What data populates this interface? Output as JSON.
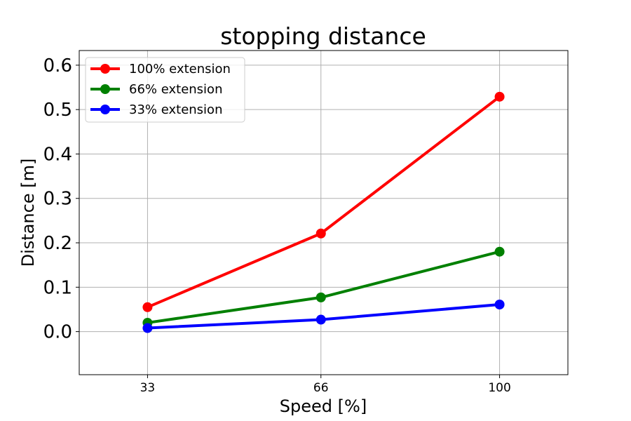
{
  "chart_data": {
    "type": "line",
    "title": "stopping distance",
    "xlabel": "Speed [%]",
    "ylabel": "Distance [m]",
    "x": [
      33,
      66,
      100
    ],
    "x_tick_labels": [
      "33",
      "66",
      "100"
    ],
    "xlim": [
      20,
      113
    ],
    "ylim": [
      -0.097,
      0.633
    ],
    "y_ticks": [
      0.0,
      0.1,
      0.2,
      0.3,
      0.4,
      0.5,
      0.6
    ],
    "y_tick_labels": [
      "0.0",
      "0.1",
      "0.2",
      "0.3",
      "0.4",
      "0.5",
      "0.6"
    ],
    "grid": true,
    "legend_position": "top-left",
    "series": [
      {
        "name": "100% extension",
        "color": "#ff0000",
        "values": [
          0.055,
          0.221,
          0.529
        ]
      },
      {
        "name": "66% extension",
        "color": "#008000",
        "values": [
          0.02,
          0.077,
          0.18
        ]
      },
      {
        "name": "33% extension",
        "color": "#0000ff",
        "values": [
          0.008,
          0.027,
          0.061
        ]
      }
    ]
  }
}
